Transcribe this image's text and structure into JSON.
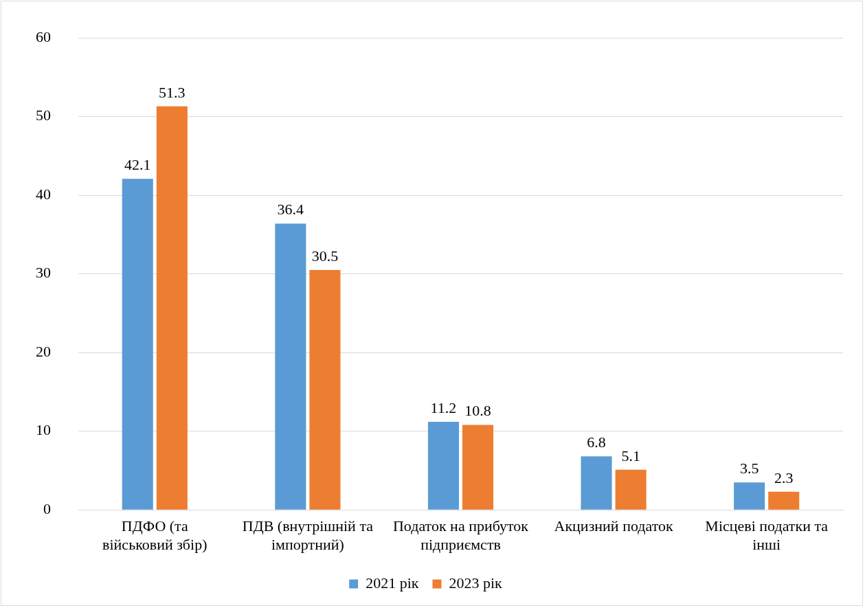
{
  "chart_data": {
    "type": "bar",
    "categories": [
      "ПДФО (та військовий збір)",
      "ПДВ (внутрішній та імпортний)",
      "Податок на прибуток підприємств",
      "Акцизний податок",
      "Місцеві податки та інші"
    ],
    "series": [
      {
        "name": "2021 рік",
        "color": "#5b9bd5",
        "values": [
          42.1,
          36.4,
          11.2,
          6.8,
          3.5
        ]
      },
      {
        "name": "2023 рік",
        "color": "#ed7d31",
        "values": [
          51.3,
          30.5,
          10.8,
          5.1,
          2.3
        ]
      }
    ],
    "ylim": [
      0,
      60
    ],
    "yticks": [
      0,
      10,
      20,
      30,
      40,
      50,
      60
    ],
    "grid": "y",
    "legend": "bottom",
    "data_labels": true
  }
}
